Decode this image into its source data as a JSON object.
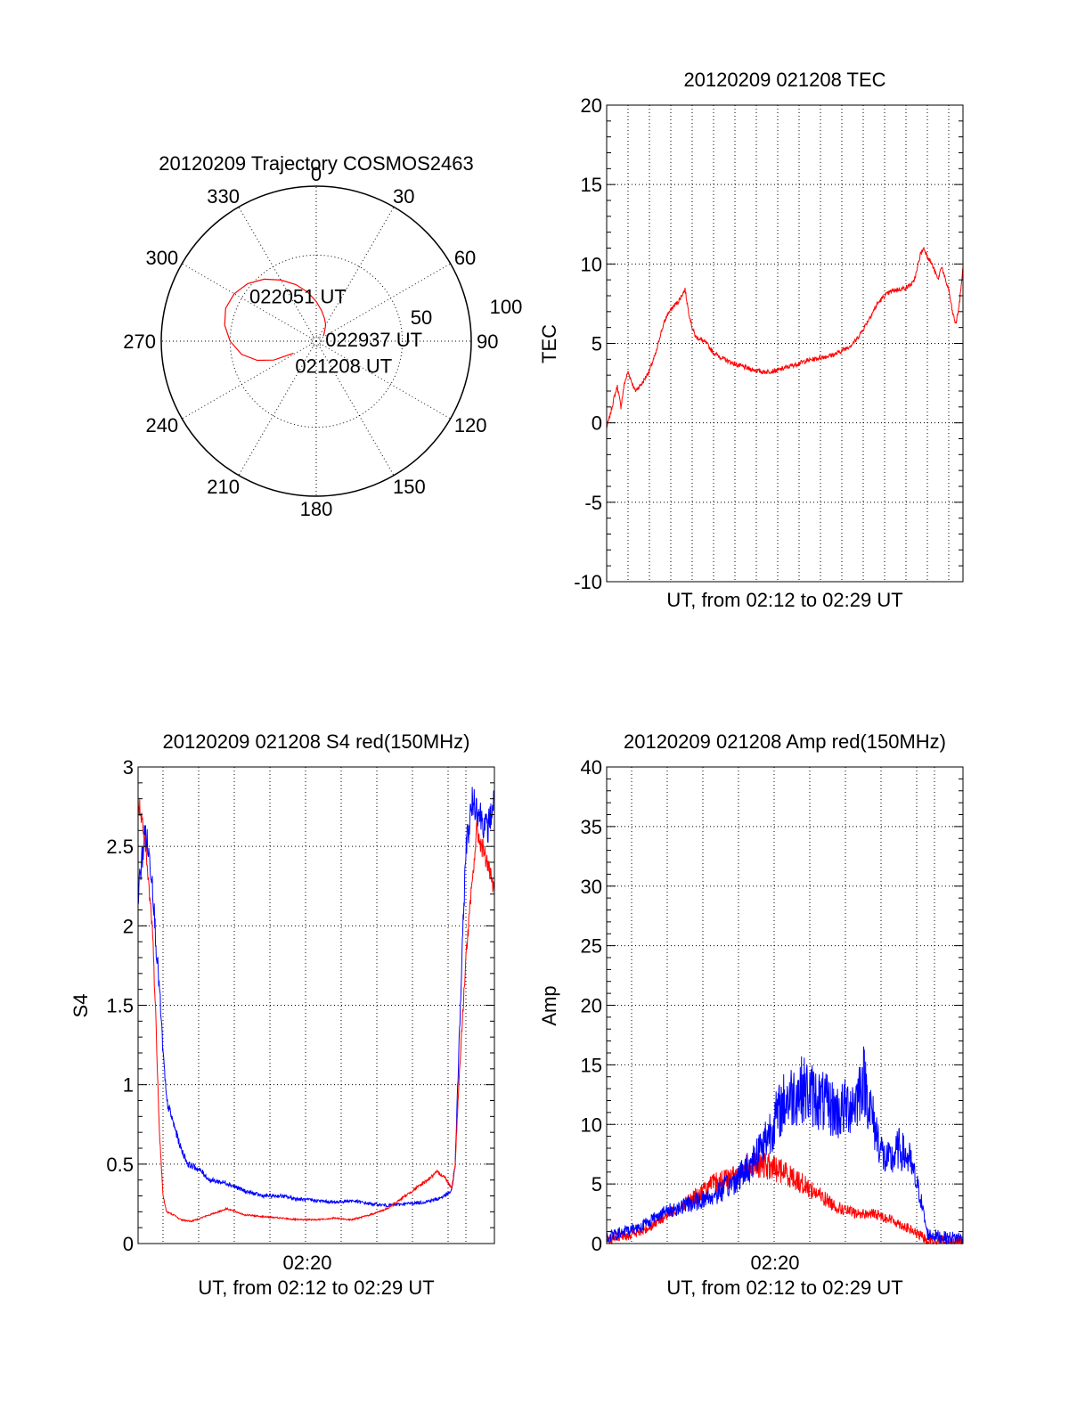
{
  "chart_data": [
    {
      "id": "polar",
      "type": "polar-trajectory",
      "title": "20120209 Trajectory COSMOS2463",
      "azimuth_labels": [
        "0",
        "30",
        "60",
        "90",
        "120",
        "150",
        "180",
        "210",
        "240",
        "270",
        "300",
        "330"
      ],
      "ring_labels": [
        "50",
        "100"
      ],
      "trajectory": {
        "color": "#ff0000",
        "points": [
          [
            242,
            75
          ],
          [
            246,
            63
          ],
          [
            252,
            54
          ],
          [
            260,
            46
          ],
          [
            270,
            40
          ],
          [
            280,
            36
          ],
          [
            290,
            34
          ],
          [
            300,
            35
          ],
          [
            310,
            38
          ],
          [
            320,
            43
          ],
          [
            330,
            49
          ],
          [
            340,
            55
          ],
          [
            350,
            61
          ],
          [
            0,
            67
          ],
          [
            10,
            72
          ],
          [
            20,
            76
          ],
          [
            30,
            79
          ],
          [
            35,
            81
          ],
          [
            40,
            82.5
          ],
          [
            45,
            83.5
          ],
          [
            50,
            84.3
          ],
          [
            55,
            84.8
          ]
        ],
        "annotations": [
          {
            "text": "022937 UT",
            "point_index": 21
          },
          {
            "text": "022051 UT",
            "point_index": 8
          },
          {
            "text": "021208 UT",
            "point_index": 0
          }
        ]
      }
    },
    {
      "id": "tec",
      "type": "line",
      "title": "20120209 021208 TEC",
      "ylabel": "TEC",
      "xlabel": "UT, from 02:12 to 02:29 UT",
      "ylim": [
        -10,
        20
      ],
      "y_ticks": [
        "-10",
        "-5",
        "0",
        "5",
        "10",
        "15",
        "20"
      ],
      "series": [
        {
          "color": "#ff0000",
          "noise": 0.15,
          "x": [
            0,
            0.01,
            0.02,
            0.03,
            0.04,
            0.05,
            0.06,
            0.08,
            0.1,
            0.12,
            0.14,
            0.15,
            0.16,
            0.17,
            0.18,
            0.19,
            0.2,
            0.21,
            0.22,
            0.23,
            0.24,
            0.25,
            0.26,
            0.28,
            0.3,
            0.33,
            0.36,
            0.4,
            0.44,
            0.48,
            0.52,
            0.56,
            0.6,
            0.64,
            0.68,
            0.7,
            0.72,
            0.74,
            0.76,
            0.78,
            0.8,
            0.82,
            0.84,
            0.86,
            0.87,
            0.88,
            0.89,
            0.9,
            0.91,
            0.92,
            0.93,
            0.94,
            0.95,
            0.96,
            0.97,
            0.98,
            0.99,
            1.0
          ],
          "y": [
            -0.3,
            0.5,
            1.5,
            2.3,
            1.0,
            2.5,
            3.2,
            2.0,
            2.5,
            3.3,
            4.5,
            5.5,
            6.2,
            6.8,
            7.1,
            7.4,
            7.6,
            8.0,
            8.4,
            7.0,
            6.0,
            5.4,
            5.3,
            5.0,
            4.4,
            4.0,
            3.7,
            3.4,
            3.2,
            3.3,
            3.6,
            3.9,
            4.1,
            4.3,
            4.8,
            5.2,
            5.9,
            6.7,
            7.5,
            8.0,
            8.3,
            8.4,
            8.5,
            8.8,
            9.5,
            10.6,
            11.0,
            10.5,
            10.1,
            9.6,
            9.0,
            9.9,
            9.0,
            8.4,
            7.0,
            6.2,
            7.5,
            9.8
          ]
        }
      ]
    },
    {
      "id": "s4",
      "type": "line",
      "title": "20120209 021208 S4 red(150MHz)",
      "ylabel": "S4",
      "xlabel": "UT, from 02:12 to 02:29 UT",
      "x_tick_label": "02:20",
      "ylim": [
        0,
        3
      ],
      "y_ticks": [
        "0",
        "0.5",
        "1",
        "1.5",
        "2",
        "2.5",
        "3"
      ],
      "series": [
        {
          "color": "#0000ff",
          "noise": 0.18,
          "x": [
            0,
            0.02,
            0.04,
            0.05,
            0.06,
            0.07,
            0.08,
            0.1,
            0.12,
            0.14,
            0.16,
            0.18,
            0.2,
            0.25,
            0.3,
            0.35,
            0.4,
            0.45,
            0.5,
            0.55,
            0.6,
            0.65,
            0.7,
            0.75,
            0.8,
            0.84,
            0.86,
            0.88,
            0.89,
            0.9,
            0.92,
            0.94,
            0.96,
            0.98,
            1.0
          ],
          "y": [
            2.2,
            2.6,
            2.3,
            1.9,
            1.6,
            1.2,
            0.9,
            0.75,
            0.6,
            0.5,
            0.48,
            0.45,
            0.4,
            0.38,
            0.33,
            0.3,
            0.3,
            0.28,
            0.27,
            0.26,
            0.27,
            0.25,
            0.24,
            0.25,
            0.26,
            0.28,
            0.3,
            0.33,
            0.5,
            1.2,
            2.5,
            2.8,
            2.7,
            2.6,
            2.8
          ]
        },
        {
          "color": "#ff0000",
          "noise": 0.12,
          "x": [
            0,
            0.02,
            0.04,
            0.05,
            0.06,
            0.07,
            0.08,
            0.1,
            0.12,
            0.15,
            0.2,
            0.25,
            0.3,
            0.35,
            0.4,
            0.45,
            0.5,
            0.55,
            0.6,
            0.65,
            0.7,
            0.75,
            0.8,
            0.84,
            0.86,
            0.88,
            0.89,
            0.9,
            0.92,
            0.95,
            0.98,
            1.0
          ],
          "y": [
            2.8,
            2.5,
            2.0,
            1.4,
            0.7,
            0.3,
            0.2,
            0.18,
            0.15,
            0.14,
            0.18,
            0.22,
            0.18,
            0.17,
            0.16,
            0.15,
            0.15,
            0.16,
            0.15,
            0.18,
            0.22,
            0.3,
            0.38,
            0.45,
            0.42,
            0.35,
            0.5,
            1.0,
            1.8,
            2.6,
            2.4,
            2.2
          ]
        }
      ]
    },
    {
      "id": "amp",
      "type": "line",
      "title": "20120209 021208 Amp red(150MHz)",
      "ylabel": "Amp",
      "xlabel": "UT, from 02:12 to 02:29 UT",
      "x_tick_label": "02:20",
      "ylim": [
        0,
        40
      ],
      "y_ticks": [
        "0",
        "5",
        "10",
        "15",
        "20",
        "25",
        "30",
        "35",
        "40"
      ],
      "series": [
        {
          "color": "#ff0000",
          "noise": 0.8,
          "x": [
            0,
            0.1,
            0.15,
            0.2,
            0.25,
            0.3,
            0.35,
            0.4,
            0.45,
            0.5,
            0.55,
            0.6,
            0.65,
            0.7,
            0.75,
            0.8,
            0.85,
            0.9,
            1.0
          ],
          "y": [
            0.3,
            1.0,
            2.0,
            3.0,
            4.0,
            5.0,
            5.5,
            6.5,
            6.5,
            6.0,
            5.0,
            4.0,
            3.0,
            2.5,
            2.5,
            2.0,
            1.2,
            0.3,
            0.2
          ]
        },
        {
          "color": "#0000ff",
          "noise": 1.0,
          "x": [
            0,
            0.1,
            0.15,
            0.2,
            0.25,
            0.3,
            0.35,
            0.4,
            0.45,
            0.5,
            0.55,
            0.6,
            0.65,
            0.7,
            0.72,
            0.75,
            0.78,
            0.8,
            0.82,
            0.85,
            0.88,
            0.9,
            0.95,
            1.0
          ],
          "y": [
            0.5,
            1.5,
            2.5,
            3.0,
            3.5,
            4.0,
            5.0,
            6.5,
            9.0,
            12.0,
            13.0,
            12.0,
            11.0,
            12.0,
            14.0,
            10.0,
            7.0,
            7.0,
            8.0,
            7.0,
            4.0,
            0.8,
            0.5,
            0.5
          ]
        }
      ]
    }
  ]
}
